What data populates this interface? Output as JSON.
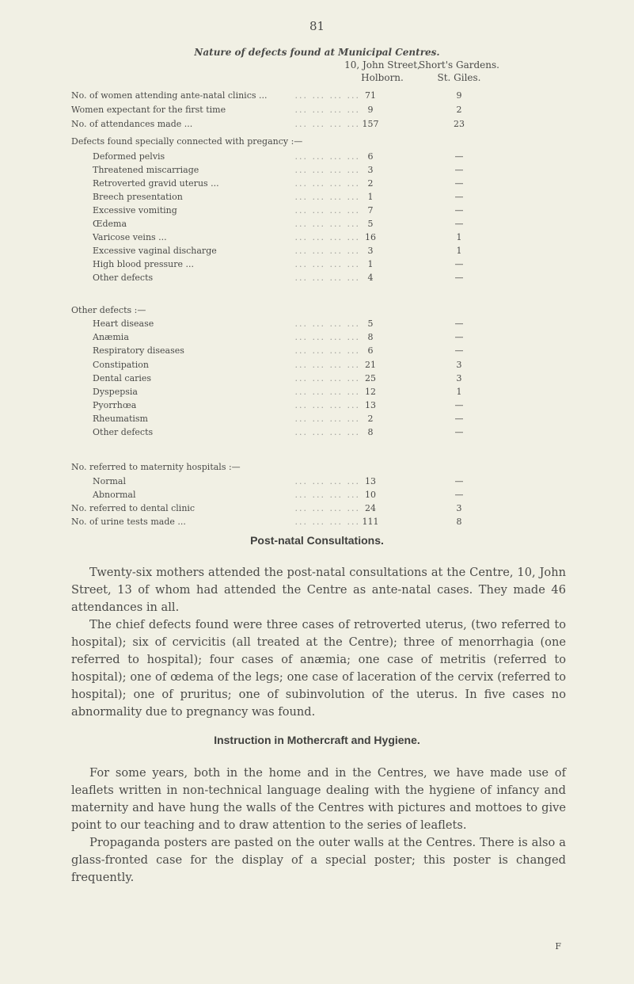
{
  "page_number": "81",
  "table": {
    "title": "Nature of defects found at Municipal Centres.",
    "col1": [
      "10, John Street,",
      "Holborn."
    ],
    "col2": [
      "Short's Gardens.",
      "St. Giles."
    ],
    "rows": [
      {
        "label": "No. of women attending ante-natal clinics ...",
        "v1": "71",
        "v2": "9"
      },
      {
        "label": "Women expectant for the first time",
        "v1": "9",
        "v2": "2"
      },
      {
        "label": "No. of attendances made ...",
        "v1": "157",
        "v2": "23"
      },
      {
        "label": "Defects found specially connected with pregancy :—",
        "v1": "",
        "v2": ""
      },
      {
        "label": "Deformed pelvis",
        "v1": "6",
        "v2": "—",
        "indent": true
      },
      {
        "label": "Threatened miscarriage",
        "v1": "3",
        "v2": "—",
        "indent": true
      },
      {
        "label": "Retroverted gravid uterus ...",
        "v1": "2",
        "v2": "—",
        "indent": true
      },
      {
        "label": "Breech presentation",
        "v1": "1",
        "v2": "—",
        "indent": true
      },
      {
        "label": "Excessive vomiting",
        "v1": "7",
        "v2": "—",
        "indent": true
      },
      {
        "label": "Œdema",
        "v1": "5",
        "v2": "—",
        "indent": true
      },
      {
        "label": "Varicose veins ...",
        "v1": "16",
        "v2": "1",
        "indent": true
      },
      {
        "label": "Excessive vaginal discharge",
        "v1": "3",
        "v2": "1",
        "indent": true
      },
      {
        "label": "High blood pressure ...",
        "v1": "1",
        "v2": "—",
        "indent": true
      },
      {
        "label": "Other defects",
        "v1": "4",
        "v2": "—",
        "indent": true
      },
      {
        "label": "Other defects :—",
        "v1": "",
        "v2": ""
      },
      {
        "label": "Heart disease",
        "v1": "5",
        "v2": "—",
        "indent": true
      },
      {
        "label": "Anæmia",
        "v1": "8",
        "v2": "—",
        "indent": true
      },
      {
        "label": "Respiratory diseases",
        "v1": "6",
        "v2": "—",
        "indent": true
      },
      {
        "label": "Constipation",
        "v1": "21",
        "v2": "3",
        "indent": true
      },
      {
        "label": "Dental caries",
        "v1": "25",
        "v2": "3",
        "indent": true
      },
      {
        "label": "Dyspepsia",
        "v1": "12",
        "v2": "1",
        "indent": true
      },
      {
        "label": "Pyorrhœa",
        "v1": "13",
        "v2": "—",
        "indent": true
      },
      {
        "label": "Rheumatism",
        "v1": "2",
        "v2": "—",
        "indent": true
      },
      {
        "label": "Other defects",
        "v1": "8",
        "v2": "—",
        "indent": true
      },
      {
        "label": "No. referred to maternity hospitals :—",
        "v1": "",
        "v2": ""
      },
      {
        "label": "Normal",
        "v1": "13",
        "v2": "—",
        "indent": true
      },
      {
        "label": "Abnormal",
        "v1": "10",
        "v2": "—",
        "indent": true
      },
      {
        "label": "No. referred to dental clinic",
        "v1": "24",
        "v2": "3"
      },
      {
        "label": "No. of urine tests made ...",
        "v1": "111",
        "v2": "8"
      }
    ]
  },
  "postnatal": {
    "heading": "Post-natal Consultations.",
    "p1": "Twenty-six mothers attended the post-natal consultations at the Centre, 10, John Street, 13 of whom had attended the Centre as ante-natal cases. They made 46 attendances in all.",
    "p2": "The chief defects found were three cases of retroverted uterus, (two referred to hospital); six of cervicitis (all treated at the Centre); three of menorrhagia (one referred to hospital); four cases of anæmia; one case of metritis (referred to hospital); one of œdema of the legs; one case of laceration of the cervix (referred to hospital); one of pruritus; one of subinvolution of the uterus. In five cases no abnormality due to pregnancy was found."
  },
  "mothercraft": {
    "heading": "Instruction in Mothercraft and Hygiene.",
    "p1": "For some years, both in the home and in the Centres, we have made use of leaflets written in non-technical language dealing with the hygiene of infancy and maternity and have hung the walls of the Centres with pictures and mottoes to give point to our teaching and to draw attention to the series of leaflets.",
    "p2": "Propaganda posters are pasted on the outer walls at the Centres. There is also a glass-fronted case for the display of a special poster; this poster is changed frequently."
  },
  "footer_signature": "F"
}
